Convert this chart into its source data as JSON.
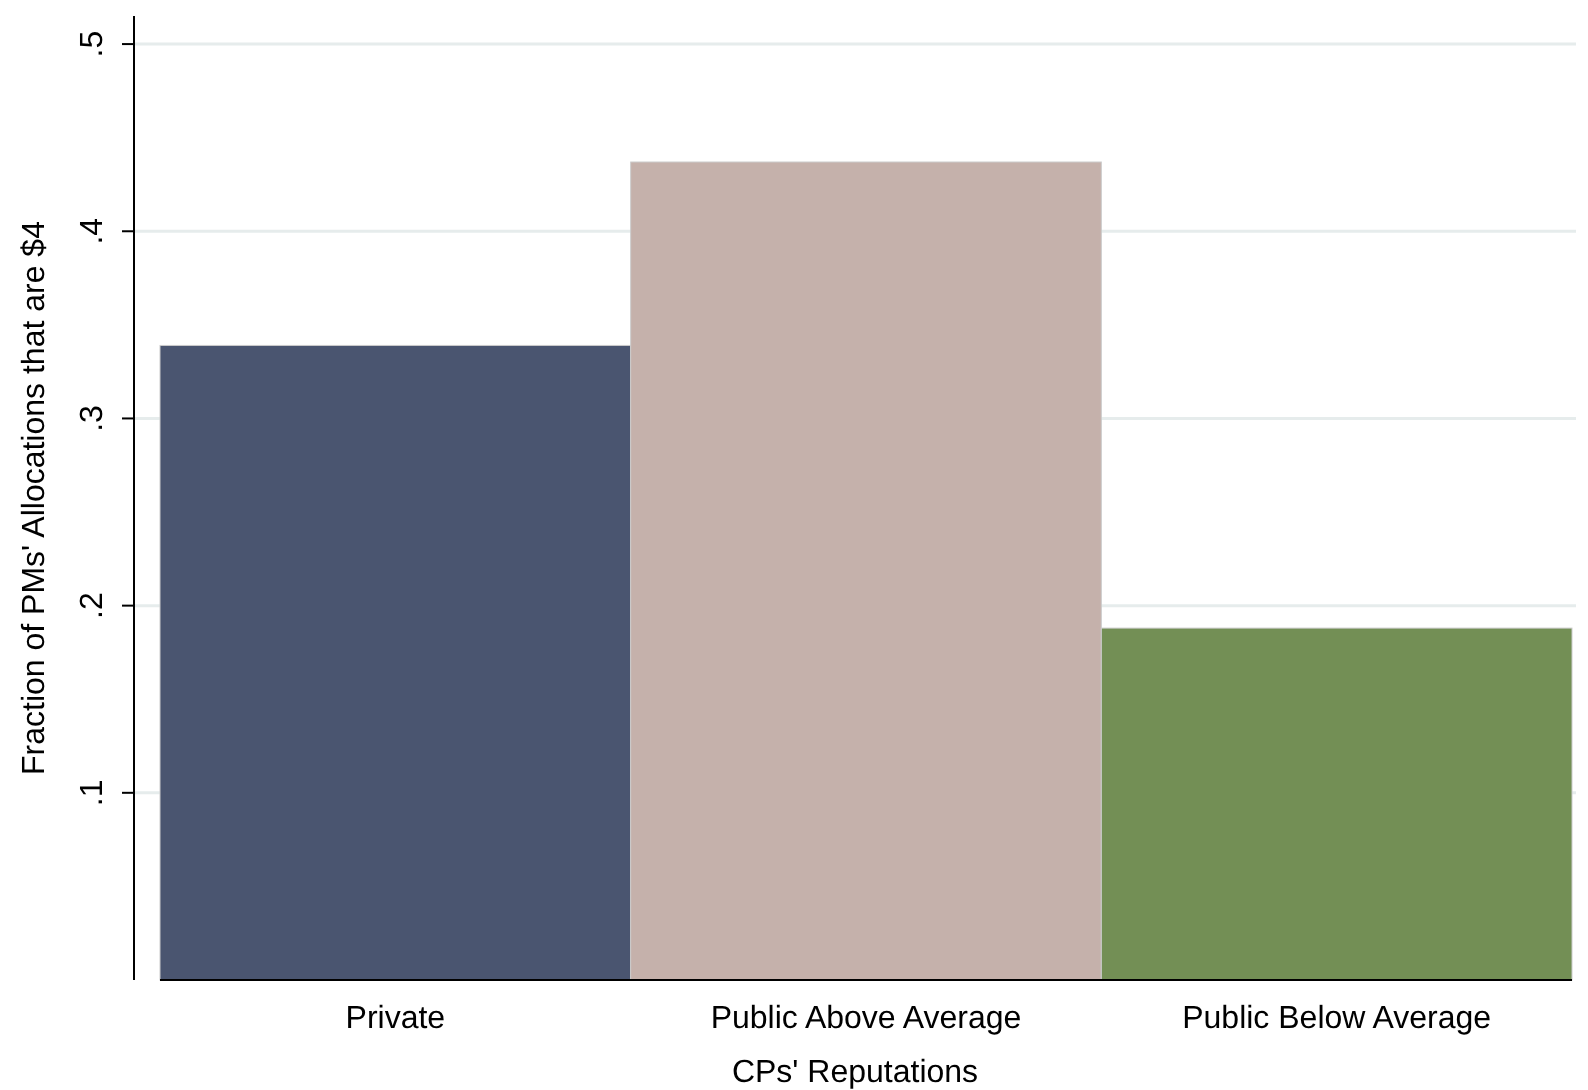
{
  "chart_data": {
    "type": "bar",
    "xlabel": "CPs' Reputations",
    "ylabel": "Fraction of PMs' Allocations that are $4",
    "categories": [
      "Private",
      "Public Above Average",
      "Public Below Average"
    ],
    "values": [
      0.339,
      0.437,
      0.188
    ],
    "colors": [
      "#4a5570",
      "#c5b1ab",
      "#738f55"
    ],
    "ylim": [
      0,
      0.515
    ],
    "yticks": [
      {
        "value": 0.1,
        "label": ".1"
      },
      {
        "value": 0.2,
        "label": ".2"
      },
      {
        "value": 0.3,
        "label": ".3"
      },
      {
        "value": 0.4,
        "label": ".4"
      },
      {
        "value": 0.5,
        "label": ".5"
      }
    ],
    "grid": "y"
  }
}
